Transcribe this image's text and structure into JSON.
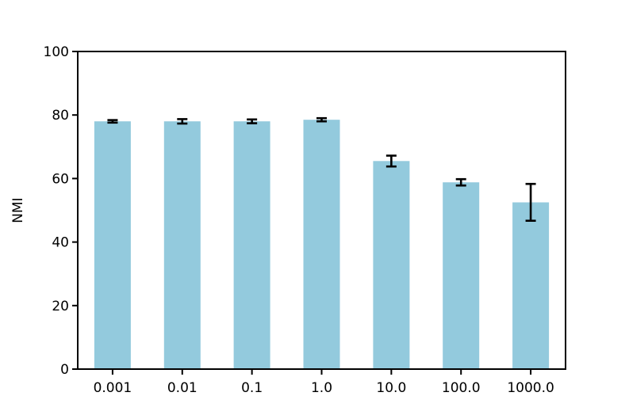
{
  "chart_data": {
    "type": "bar",
    "title": "",
    "xlabel": "",
    "ylabel": "NMI",
    "categories": [
      "0.001",
      "0.01",
      "0.1",
      "1.0",
      "10.0",
      "100.0",
      "1000.0"
    ],
    "series": [
      {
        "name": "NMI",
        "values": [
          78.0,
          78.0,
          78.0,
          78.5,
          65.5,
          58.8,
          52.5
        ],
        "errors": [
          0.4,
          0.7,
          0.6,
          0.5,
          1.7,
          1.0,
          5.8
        ]
      }
    ],
    "ylim": [
      0,
      100
    ],
    "yticks": [
      0,
      20,
      40,
      60,
      80,
      100
    ],
    "grid": "off",
    "legend": "none",
    "colors": {
      "bar_fill": "#93cadd",
      "error_bar": "#000000",
      "axis": "#000000",
      "background": "#ffffff"
    }
  }
}
